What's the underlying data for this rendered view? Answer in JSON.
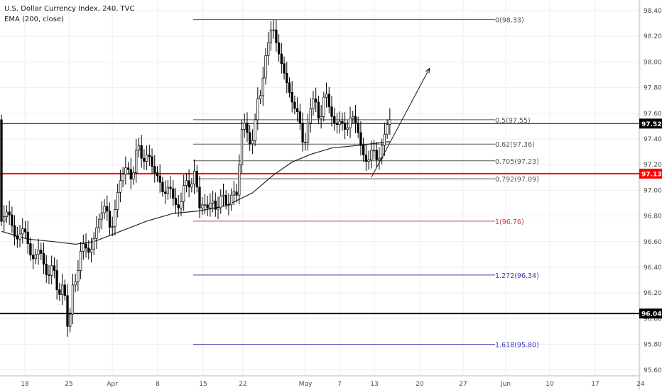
{
  "header": {
    "title": "U.S. Dollar Currency Index, 240, TVC",
    "indicator": "EMA (200, close)"
  },
  "chart_data": {
    "type": "candlestick",
    "ylim": [
      95.6,
      98.45
    ],
    "price_ticks": [
      "98.40",
      "98.20",
      "98.00",
      "97.80",
      "97.60",
      "97.40",
      "97.20",
      "97.00",
      "96.80",
      "96.60",
      "96.40",
      "96.20",
      "96.00",
      "95.80",
      "95.60"
    ],
    "x_ticks": [
      "18",
      "25",
      "Apr",
      "8",
      "15",
      "22",
      "May",
      "7",
      "13",
      "20",
      "27",
      "Jun",
      "10",
      "17",
      "24"
    ],
    "fib_levels": [
      {
        "label": "0(98.33)",
        "value": 98.33,
        "color": "#555555"
      },
      {
        "label": "0.5(97.55)",
        "value": 97.55,
        "color": "#555555"
      },
      {
        "label": "0.62(97.36)",
        "value": 97.36,
        "color": "#555555"
      },
      {
        "label": "0.705(97.23)",
        "value": 97.23,
        "color": "#555555"
      },
      {
        "label": "0.792(97.09)",
        "value": 97.09,
        "color": "#555555"
      },
      {
        "label": "1(96.76)",
        "value": 96.76,
        "color": "#d23c3c"
      },
      {
        "label": "1.272(96.34)",
        "value": 96.34,
        "color": "#3a3ab8"
      },
      {
        "label": "1.618(95.80)",
        "value": 95.8,
        "color": "#3a3ab8"
      }
    ],
    "horizontal_lines": [
      {
        "label": "97.52",
        "value": 97.52,
        "color": "#000000",
        "width": 1
      },
      {
        "label": "97.13",
        "value": 97.13,
        "color": "#ff0000",
        "width": 2
      },
      {
        "label": "96.04",
        "value": 96.04,
        "color": "#000000",
        "width": 2
      }
    ],
    "price_path": [
      [
        0,
        96.74
      ],
      [
        3,
        96.85
      ],
      [
        6,
        96.6
      ],
      [
        9,
        96.72
      ],
      [
        12,
        96.45
      ],
      [
        15,
        96.55
      ],
      [
        18,
        96.3
      ],
      [
        20,
        96.45
      ],
      [
        22,
        96.15
      ],
      [
        24,
        96.3
      ],
      [
        26,
        95.82
      ],
      [
        27,
        96.25
      ],
      [
        29,
        96.3
      ],
      [
        31,
        96.6
      ],
      [
        34,
        96.5
      ],
      [
        37,
        96.75
      ],
      [
        40,
        96.9
      ],
      [
        42,
        96.65
      ],
      [
        45,
        97.05
      ],
      [
        48,
        97.2
      ],
      [
        50,
        97.05
      ],
      [
        52,
        97.4
      ],
      [
        54,
        97.2
      ],
      [
        56,
        97.3
      ],
      [
        58,
        97.15
      ],
      [
        60,
        97.1
      ],
      [
        62,
        96.95
      ],
      [
        64,
        97.05
      ],
      [
        66,
        96.9
      ],
      [
        68,
        96.85
      ],
      [
        70,
        97.1
      ],
      [
        72,
        97.0
      ],
      [
        74,
        97.2
      ],
      [
        75,
        96.85
      ],
      [
        77,
        96.9
      ],
      [
        79,
        96.85
      ],
      [
        80,
        96.95
      ],
      [
        82,
        96.82
      ],
      [
        84,
        97.0
      ],
      [
        86,
        96.85
      ],
      [
        88,
        97.0
      ],
      [
        90,
        96.95
      ],
      [
        91,
        97.45
      ],
      [
        93,
        97.55
      ],
      [
        94,
        97.35
      ],
      [
        96,
        97.4
      ],
      [
        97,
        97.7
      ],
      [
        99,
        97.75
      ],
      [
        100,
        98.0
      ],
      [
        101,
        98.1
      ],
      [
        103,
        98.3
      ],
      [
        105,
        98.1
      ],
      [
        107,
        97.95
      ],
      [
        109,
        97.8
      ],
      [
        111,
        97.65
      ],
      [
        113,
        97.6
      ],
      [
        115,
        97.3
      ],
      [
        117,
        97.6
      ],
      [
        119,
        97.75
      ],
      [
        121,
        97.5
      ],
      [
        123,
        97.8
      ],
      [
        125,
        97.6
      ],
      [
        127,
        97.5
      ],
      [
        129,
        97.55
      ],
      [
        131,
        97.45
      ],
      [
        133,
        97.6
      ],
      [
        135,
        97.5
      ],
      [
        137,
        97.3
      ],
      [
        139,
        97.2
      ],
      [
        141,
        97.35
      ],
      [
        143,
        97.2
      ],
      [
        145,
        97.4
      ],
      [
        147,
        97.55
      ]
    ],
    "ema_path": [
      [
        0,
        96.68
      ],
      [
        10,
        96.62
      ],
      [
        20,
        96.6
      ],
      [
        28,
        96.58
      ],
      [
        35,
        96.6
      ],
      [
        45,
        96.68
      ],
      [
        55,
        96.76
      ],
      [
        65,
        96.82
      ],
      [
        75,
        96.84
      ],
      [
        85,
        96.88
      ],
      [
        95,
        96.98
      ],
      [
        103,
        97.12
      ],
      [
        110,
        97.22
      ],
      [
        117,
        97.28
      ],
      [
        125,
        97.33
      ],
      [
        135,
        97.35
      ],
      [
        147,
        97.38
      ]
    ],
    "projection_arrow": {
      "from": [
        140,
        97.1
      ],
      "to": [
        162,
        97.95
      ]
    }
  }
}
